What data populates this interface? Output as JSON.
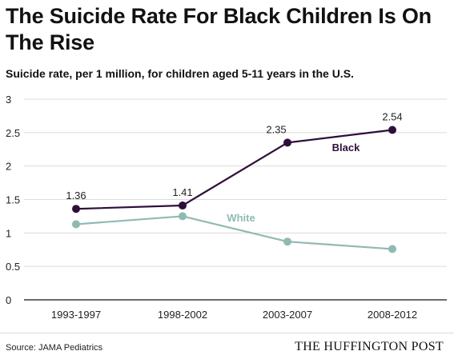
{
  "header": {
    "title": "The Suicide Rate For Black Children Is On The Rise",
    "subtitle": "Suicide rate, per 1 million, for children aged 5-11 years in the U.S."
  },
  "footer": {
    "source": "Source: JAMA Pediatrics",
    "brand": "THE HUFFINGTON POST"
  },
  "chart_data": {
    "type": "line",
    "title": "The Suicide Rate For Black Children Is On The Rise",
    "subtitle": "Suicide rate, per 1 million, for children aged 5-11 years in the U.S.",
    "categories": [
      "1993-1997",
      "1998-2002",
      "2003-2007",
      "2008-2012"
    ],
    "ylim": [
      0,
      3
    ],
    "yticks": [
      0,
      0.5,
      1,
      1.5,
      2,
      2.5,
      3
    ],
    "ytick_labels": [
      "0",
      "0.5",
      "1",
      "1.5",
      "2",
      "2.5",
      "3"
    ],
    "grid": "horizontal",
    "series": [
      {
        "name": "Black",
        "values": [
          1.36,
          1.41,
          2.35,
          2.54
        ],
        "data_labels": [
          "1.36",
          "1.41",
          "2.35",
          "2.54"
        ],
        "color": "#2e0f3b"
      },
      {
        "name": "White",
        "values": [
          1.13,
          1.25,
          0.87,
          0.76
        ],
        "data_labels": [],
        "color": "#8fbab3"
      }
    ]
  }
}
